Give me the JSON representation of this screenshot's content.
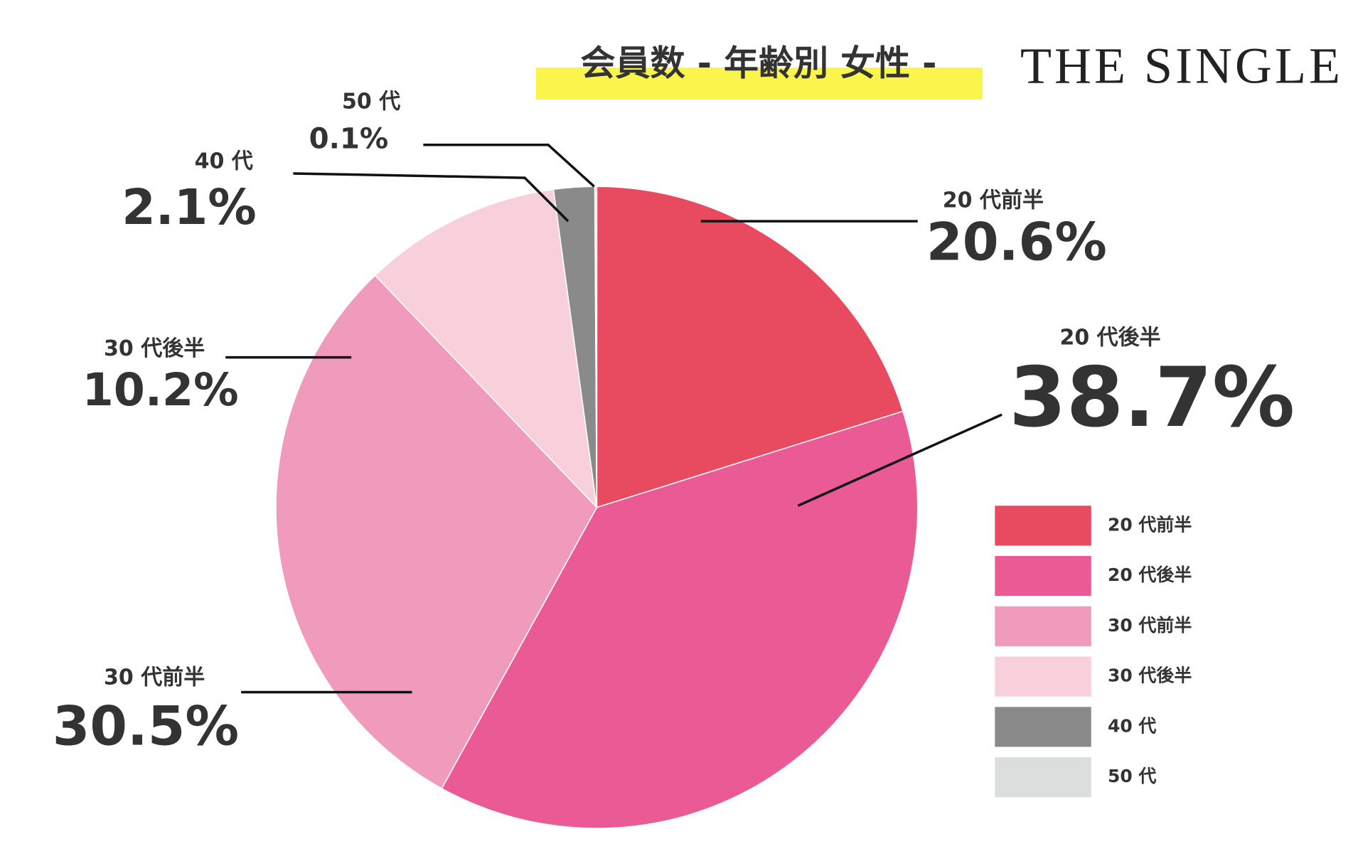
{
  "chart_data": {
    "type": "pie",
    "title": "会員数 - 年齢別 女性 -",
    "logo": "THE SINGLE",
    "categories": [
      "20 代前半",
      "20 代後半",
      "30 代前半",
      "30 代後半",
      "40 代",
      "50 代"
    ],
    "values": [
      20.6,
      38.7,
      30.5,
      10.2,
      2.1,
      0.1
    ],
    "value_labels": [
      "20.6%",
      "38.7%",
      "30.5%",
      "10.2%",
      "2.1%",
      "0.1%"
    ],
    "colors": [
      "#e84a5f",
      "#ea5a94",
      "#f09abc",
      "#f8d0dc",
      "#8a8a8a",
      "#dcdddd"
    ],
    "legend": "right"
  }
}
